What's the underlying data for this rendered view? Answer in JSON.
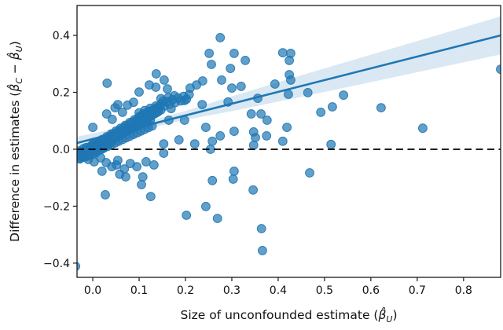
{
  "chart_data": {
    "type": "scatter",
    "title": "",
    "xlabel_segments": [
      {
        "text": "Size of unconfounded estimate ("
      },
      {
        "text": "β̂",
        "italic": true
      },
      {
        "text": "U",
        "italic": true,
        "sub": true
      },
      {
        "text": ")"
      }
    ],
    "ylabel_segments": [
      {
        "text": "Difference in estimates ("
      },
      {
        "text": "β̂",
        "italic": true
      },
      {
        "text": "C",
        "italic": true,
        "sub": true
      },
      {
        "text": " − "
      },
      {
        "text": "β̂",
        "italic": true
      },
      {
        "text": "U",
        "italic": true,
        "sub": true
      },
      {
        "text": ")"
      }
    ],
    "xlim": [
      -0.034,
      0.88
    ],
    "ylim": [
      -0.45,
      0.505
    ],
    "xticks": {
      "values": [
        0.0,
        0.1,
        0.2,
        0.3,
        0.4,
        0.5,
        0.6,
        0.7,
        0.8
      ],
      "labels": [
        "0.0",
        "0.1",
        "0.2",
        "0.3",
        "0.4",
        "0.5",
        "0.6",
        "0.7",
        "0.8"
      ]
    },
    "yticks": {
      "values": [
        -0.4,
        -0.2,
        0.0,
        0.2,
        0.4
      ],
      "labels": [
        "−0.4",
        "−0.2",
        "0.0",
        "0.2",
        "0.4"
      ]
    },
    "grid": false,
    "legend": null,
    "zero_reference_line": {
      "y": 0.0,
      "style": "dashed",
      "color": "#000000",
      "width": 1.8
    },
    "regression_line": {
      "x": [
        -0.034,
        0.88
      ],
      "y": [
        0.022,
        0.4
      ],
      "color": "#1f77b4",
      "width": 2.6
    },
    "confidence_band": {
      "color": "#1f77b4",
      "opacity": 0.17,
      "x": [
        -0.034,
        0.05,
        0.12,
        0.2,
        0.3,
        0.45,
        0.6,
        0.75,
        0.88
      ],
      "upper": [
        0.044,
        0.073,
        0.098,
        0.135,
        0.186,
        0.26,
        0.332,
        0.404,
        0.467
      ],
      "lower": [
        0.0,
        0.041,
        0.074,
        0.103,
        0.134,
        0.184,
        0.236,
        0.288,
        0.333
      ]
    },
    "scatter": {
      "color": "#1f77b4",
      "fill_opacity": 0.7,
      "stroke_opacity": 0.9,
      "radius": 5.4,
      "points": [
        [
          0.031,
          0.232
        ],
        [
          0.275,
          0.392
        ],
        [
          0.251,
          0.337
        ],
        [
          0.305,
          0.337
        ],
        [
          0.256,
          0.298
        ],
        [
          0.329,
          0.312
        ],
        [
          0.297,
          0.284
        ],
        [
          0.137,
          0.265
        ],
        [
          0.154,
          0.243
        ],
        [
          0.136,
          0.218
        ],
        [
          0.161,
          0.212
        ],
        [
          0.1,
          0.201
        ],
        [
          0.21,
          0.215
        ],
        [
          0.224,
          0.226
        ],
        [
          0.237,
          0.24
        ],
        [
          0.278,
          0.243
        ],
        [
          0.41,
          0.339
        ],
        [
          0.427,
          0.337
        ],
        [
          0.424,
          0.312
        ],
        [
          0.424,
          0.262
        ],
        [
          0.427,
          0.243
        ],
        [
          0.393,
          0.229
        ],
        [
          0.3,
          0.215
        ],
        [
          0.464,
          0.199
        ],
        [
          0.541,
          0.19
        ],
        [
          0.517,
          0.149
        ],
        [
          0.492,
          0.13
        ],
        [
          0.622,
          0.146
        ],
        [
          0.712,
          0.074
        ],
        [
          0.88,
          0.281
        ],
        [
          0.514,
          0.017
        ],
        [
          0.468,
          -0.083
        ],
        [
          0.122,
          0.226
        ],
        [
          0.176,
          0.188
        ],
        [
          0.198,
          0.171
        ],
        [
          0.236,
          0.157
        ],
        [
          0.292,
          0.166
        ],
        [
          0.32,
          0.221
        ],
        [
          0.422,
          0.193
        ],
        [
          0.342,
          0.124
        ],
        [
          0.376,
          0.102
        ],
        [
          0.419,
          0.077
        ],
        [
          0.351,
          0.041
        ],
        [
          0.305,
          0.063
        ],
        [
          0.275,
          0.047
        ],
        [
          0.244,
          0.077
        ],
        [
          0.258,
          0.028
        ],
        [
          0.22,
          0.019
        ],
        [
          0.186,
          0.033
        ],
        [
          0.153,
          0.019
        ],
        [
          0.198,
          0.102
        ],
        [
          0.164,
          0.102
        ],
        [
          0.139,
          0.13
        ],
        [
          0.169,
          0.143
        ],
        [
          0.347,
          0.061
        ],
        [
          0.363,
          0.124
        ],
        [
          0.356,
          0.179
        ],
        [
          0.375,
          0.047
        ],
        [
          0.41,
          0.028
        ],
        [
          0.254,
          0.0
        ],
        [
          0.347,
          0.014
        ],
        [
          0.153,
          -0.014
        ],
        [
          0.051,
          -0.055
        ],
        [
          0.105,
          -0.124
        ],
        [
          0.258,
          -0.11
        ],
        [
          0.305,
          -0.077
        ],
        [
          0.346,
          -0.143
        ],
        [
          0.303,
          -0.105
        ],
        [
          0.027,
          -0.16
        ],
        [
          0.125,
          -0.166
        ],
        [
          0.108,
          -0.097
        ],
        [
          0.071,
          -0.097
        ],
        [
          0.202,
          -0.232
        ],
        [
          0.244,
          -0.201
        ],
        [
          0.269,
          -0.243
        ],
        [
          0.364,
          -0.279
        ],
        [
          0.366,
          -0.356
        ],
        [
          -0.037,
          -0.411
        ],
        [
          0.0,
          0.077
        ],
        [
          0.03,
          0.124
        ],
        [
          0.048,
          0.146
        ],
        [
          0.075,
          0.155
        ],
        [
          0.054,
          0.157
        ],
        [
          0.088,
          0.165
        ],
        [
          0.064,
          0.13
        ],
        [
          0.042,
          0.105
        ],
        [
          -0.022,
          -0.028
        ],
        [
          -0.01,
          -0.036
        ],
        [
          0.003,
          -0.044
        ],
        [
          0.017,
          -0.03
        ],
        [
          0.029,
          -0.047
        ],
        [
          0.041,
          -0.061
        ],
        [
          0.054,
          -0.039
        ],
        [
          0.068,
          -0.069
        ],
        [
          0.081,
          -0.05
        ],
        [
          0.095,
          -0.061
        ],
        [
          0.115,
          -0.044
        ],
        [
          0.132,
          -0.055
        ],
        [
          0.058,
          -0.088
        ],
        [
          0.02,
          -0.077
        ],
        [
          -0.03,
          -0.022
        ],
        [
          -0.027,
          -0.031
        ],
        [
          -0.024,
          -0.015
        ],
        [
          -0.021,
          -0.028
        ],
        [
          -0.018,
          -0.009
        ],
        [
          -0.015,
          -0.022
        ],
        [
          -0.012,
          -0.003
        ],
        [
          -0.009,
          -0.016
        ],
        [
          -0.006,
          0.002
        ],
        [
          -0.003,
          -0.011
        ],
        [
          0.0,
          0.008
        ],
        [
          0.003,
          -0.006
        ],
        [
          0.006,
          0.014
        ],
        [
          0.009,
          0.001
        ],
        [
          0.012,
          0.02
        ],
        [
          0.015,
          0.007
        ],
        [
          0.018,
          0.026
        ],
        [
          0.021,
          0.012
        ],
        [
          0.024,
          0.032
        ],
        [
          0.027,
          0.018
        ],
        [
          0.03,
          0.038
        ],
        [
          0.033,
          0.024
        ],
        [
          0.036,
          0.044
        ],
        [
          0.039,
          0.03
        ],
        [
          0.042,
          0.05
        ],
        [
          0.045,
          0.036
        ],
        [
          0.048,
          0.056
        ],
        [
          0.051,
          0.042
        ],
        [
          0.054,
          0.062
        ],
        [
          0.057,
          0.048
        ],
        [
          0.06,
          0.068
        ],
        [
          0.063,
          0.054
        ],
        [
          0.066,
          0.074
        ],
        [
          0.069,
          0.06
        ],
        [
          0.072,
          0.08
        ],
        [
          0.075,
          0.066
        ],
        [
          0.078,
          0.086
        ],
        [
          0.081,
          0.072
        ],
        [
          0.084,
          0.092
        ],
        [
          0.087,
          0.078
        ],
        [
          0.09,
          0.098
        ],
        [
          0.093,
          0.084
        ],
        [
          0.096,
          0.104
        ],
        [
          0.099,
          0.09
        ],
        [
          0.102,
          0.11
        ],
        [
          0.105,
          0.096
        ],
        [
          0.108,
          0.116
        ],
        [
          0.111,
          0.102
        ],
        [
          0.114,
          0.122
        ],
        [
          0.117,
          0.108
        ],
        [
          0.12,
          0.128
        ],
        [
          0.123,
          0.114
        ],
        [
          0.126,
          0.134
        ],
        [
          0.129,
          0.12
        ],
        [
          0.132,
          0.14
        ],
        [
          0.135,
          0.126
        ],
        [
          0.138,
          0.146
        ],
        [
          0.141,
          0.132
        ],
        [
          0.144,
          0.152
        ],
        [
          0.147,
          0.138
        ],
        [
          -0.028,
          -0.034
        ],
        [
          -0.024,
          -0.008
        ],
        [
          -0.02,
          -0.027
        ],
        [
          -0.016,
          -0.001
        ],
        [
          -0.012,
          -0.021
        ],
        [
          -0.008,
          0.004
        ],
        [
          -0.004,
          -0.014
        ],
        [
          0.0,
          -0.018
        ],
        [
          0.004,
          0.012
        ],
        [
          0.008,
          -0.008
        ],
        [
          0.012,
          0.018
        ],
        [
          0.016,
          -0.002
        ],
        [
          0.02,
          0.024
        ],
        [
          0.024,
          0.004
        ],
        [
          0.028,
          0.03
        ],
        [
          0.032,
          0.01
        ],
        [
          0.036,
          0.036
        ],
        [
          0.04,
          0.016
        ],
        [
          0.044,
          0.042
        ],
        [
          0.048,
          0.022
        ],
        [
          0.052,
          0.048
        ],
        [
          0.056,
          0.028
        ],
        [
          0.06,
          0.054
        ],
        [
          0.064,
          0.034
        ],
        [
          0.068,
          0.06
        ],
        [
          0.072,
          0.04
        ],
        [
          0.076,
          0.066
        ],
        [
          0.08,
          0.046
        ],
        [
          0.084,
          0.072
        ],
        [
          0.088,
          0.052
        ],
        [
          0.092,
          0.078
        ],
        [
          0.096,
          0.058
        ],
        [
          0.1,
          0.084
        ],
        [
          0.104,
          0.064
        ],
        [
          0.108,
          0.09
        ],
        [
          0.112,
          0.07
        ],
        [
          0.116,
          0.096
        ],
        [
          0.12,
          0.076
        ],
        [
          0.124,
          0.102
        ],
        [
          0.128,
          0.082
        ],
        [
          -0.02,
          -0.013
        ],
        [
          -0.015,
          -0.026
        ],
        [
          -0.01,
          -0.002
        ],
        [
          -0.005,
          -0.016
        ],
        [
          0.0,
          0.018
        ],
        [
          0.005,
          -0.004
        ],
        [
          0.01,
          0.024
        ],
        [
          0.015,
          0.008
        ],
        [
          0.02,
          0.034
        ],
        [
          0.025,
          0.016
        ],
        [
          0.03,
          0.044
        ],
        [
          0.035,
          0.026
        ],
        [
          0.04,
          0.054
        ],
        [
          0.045,
          0.036
        ],
        [
          0.05,
          0.064
        ],
        [
          0.055,
          0.046
        ],
        [
          0.06,
          0.074
        ],
        [
          0.065,
          0.056
        ],
        [
          0.07,
          0.084
        ],
        [
          0.075,
          0.066
        ],
        [
          0.08,
          0.094
        ],
        [
          0.085,
          0.076
        ],
        [
          0.09,
          0.104
        ],
        [
          0.095,
          0.086
        ],
        [
          0.1,
          0.114
        ],
        [
          0.105,
          0.096
        ],
        [
          0.11,
          0.124
        ],
        [
          0.115,
          0.106
        ],
        [
          0.12,
          0.134
        ],
        [
          0.125,
          0.116
        ],
        [
          0.1,
          0.128
        ],
        [
          0.106,
          0.12
        ],
        [
          0.112,
          0.136
        ],
        [
          0.118,
          0.128
        ],
        [
          0.124,
          0.144
        ],
        [
          0.13,
          0.136
        ],
        [
          0.136,
          0.152
        ],
        [
          0.142,
          0.144
        ],
        [
          0.148,
          0.16
        ],
        [
          0.154,
          0.152
        ],
        [
          0.16,
          0.168
        ],
        [
          0.166,
          0.158
        ],
        [
          0.172,
          0.174
        ],
        [
          0.178,
          0.164
        ],
        [
          0.184,
          0.18
        ],
        [
          0.19,
          0.17
        ],
        [
          0.196,
          0.186
        ],
        [
          0.202,
          0.176
        ],
        [
          0.208,
          0.192
        ],
        [
          0.152,
          0.17
        ],
        [
          0.163,
          0.182
        ],
        [
          0.147,
          0.178
        ],
        [
          -0.032,
          -0.018
        ],
        [
          -0.029,
          -0.006
        ],
        [
          -0.026,
          -0.024
        ],
        [
          -0.023,
          -0.01
        ],
        [
          -0.02,
          0.002
        ],
        [
          -0.017,
          -0.018
        ],
        [
          -0.014,
          0.006
        ],
        [
          -0.011,
          -0.008
        ],
        [
          -0.008,
          -0.022
        ],
        [
          -0.005,
          0.01
        ],
        [
          -0.002,
          -0.004
        ],
        [
          0.001,
          0.016
        ],
        [
          0.004,
          0.002
        ],
        [
          0.007,
          -0.012
        ],
        [
          0.01,
          0.012
        ],
        [
          0.013,
          0.028
        ],
        [
          0.016,
          0.016
        ],
        [
          0.019,
          0.0
        ],
        [
          0.022,
          0.02
        ],
        [
          0.025,
          0.008
        ],
        [
          0.028,
          0.026
        ],
        [
          0.031,
          0.014
        ],
        [
          0.034,
          0.034
        ],
        [
          0.037,
          0.022
        ],
        [
          0.04,
          0.04
        ]
      ]
    },
    "frame_color": "#1a1a1a",
    "tick_font_px": 14,
    "label_font_px": 15.5
  }
}
